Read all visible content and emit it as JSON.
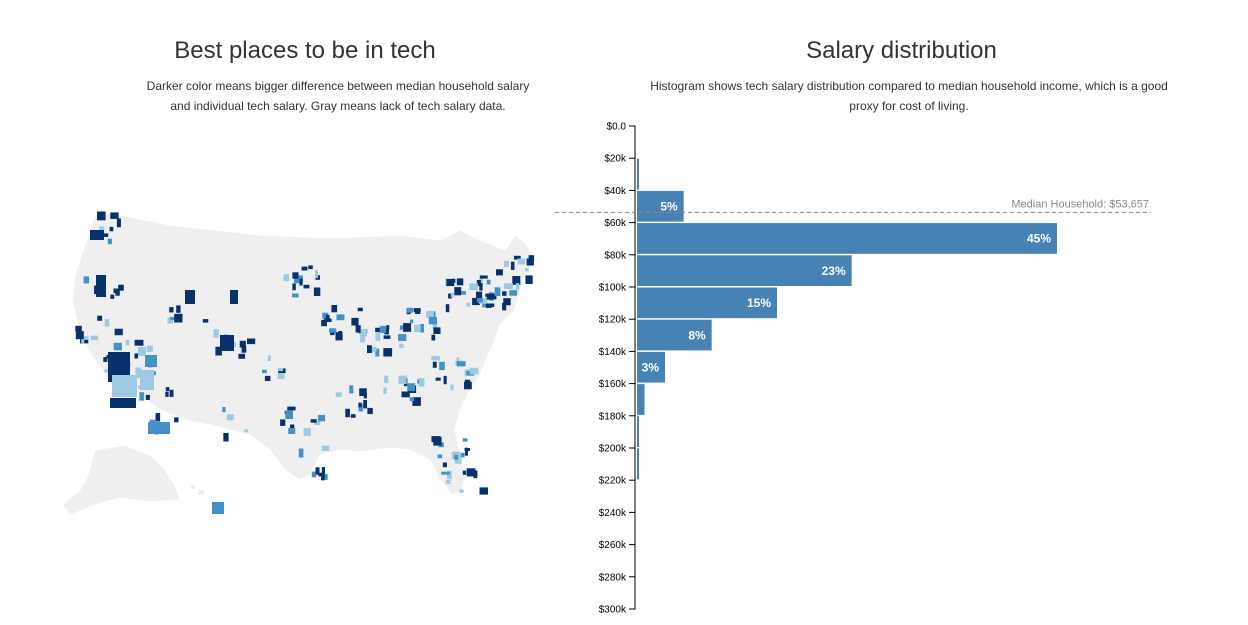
{
  "map_panel": {
    "title": "Best places to be in tech",
    "subtitle": "Darker color means bigger difference between median household salary and individual tech salary. Gray means lack of tech salary data.",
    "colors": {
      "no_data": "#efefef",
      "light": "#9ecae1",
      "medium": "#4292c6",
      "dark": "#08306b",
      "border": "#ffffff"
    }
  },
  "histogram_panel": {
    "title": "Salary distribution",
    "subtitle": "Histogram shows tech salary distribution compared to median household income, which is a good proxy for cost of living.",
    "median_label": "Median Household: $53,657",
    "bar_color": "#4682b4",
    "median_line_color": "#888888"
  },
  "chart_data": [
    {
      "type": "heatmap",
      "title": "Best places to be in tech",
      "description": "US county choropleth map"
    },
    {
      "type": "bar",
      "orientation": "horizontal",
      "title": "Salary distribution",
      "y_ticks": [
        "$0.0",
        "$20k",
        "$40k",
        "$60k",
        "$80k",
        "$100k",
        "$120k",
        "$140k",
        "$160k",
        "$180k",
        "$200k",
        "$220k",
        "$240k",
        "$260k",
        "$280k",
        "$300k"
      ],
      "ylim": [
        0,
        300000
      ],
      "bins": [
        {
          "x0": 20000,
          "x1": 40000,
          "pct": 0.2,
          "label": ""
        },
        {
          "x0": 40000,
          "x1": 60000,
          "pct": 5,
          "label": "5%"
        },
        {
          "x0": 60000,
          "x1": 80000,
          "pct": 45,
          "label": "45%"
        },
        {
          "x0": 80000,
          "x1": 100000,
          "pct": 23,
          "label": "23%"
        },
        {
          "x0": 100000,
          "x1": 120000,
          "pct": 15,
          "label": "15%"
        },
        {
          "x0": 120000,
          "x1": 140000,
          "pct": 8,
          "label": "8%"
        },
        {
          "x0": 140000,
          "x1": 160000,
          "pct": 3,
          "label": "3%"
        },
        {
          "x0": 160000,
          "x1": 180000,
          "pct": 0.8,
          "label": ""
        },
        {
          "x0": 180000,
          "x1": 200000,
          "pct": 0.2,
          "label": ""
        },
        {
          "x0": 200000,
          "x1": 220000,
          "pct": 0.15,
          "label": ""
        }
      ],
      "median_household": 53657
    }
  ]
}
